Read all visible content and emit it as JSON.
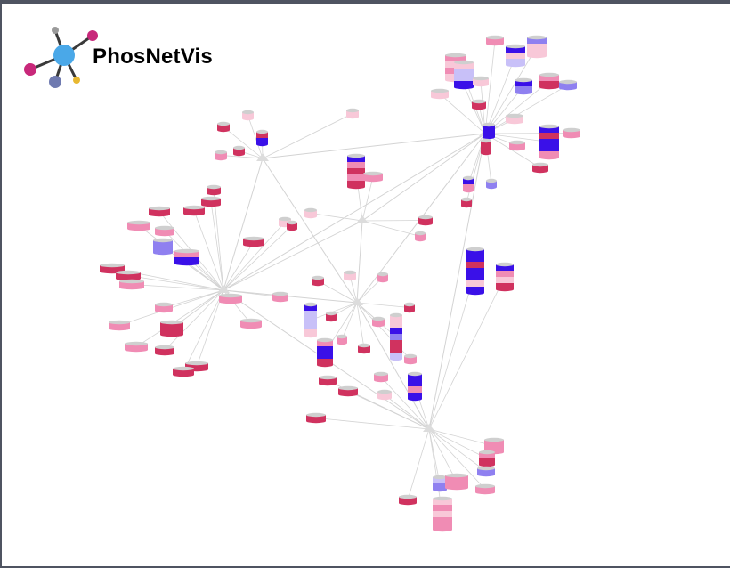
{
  "app": {
    "title": "PhosNetVis",
    "logo_icon": "network-molecule-icon"
  },
  "colors": {
    "background": "#ffffff",
    "frame": "#4f5461",
    "edge": "#d3d3d3",
    "hub": "#dcdcdc",
    "cap": "#cfcfcf",
    "dark_pink": "#d0325f",
    "pink": "#f08cb4",
    "light_pink": "#f8c8d8",
    "blue": "#3a10e8",
    "light_blue": "#8f80f0",
    "pale_blue": "#c8c0f8",
    "logo_hub": "#4aa8e8",
    "logo_magenta": "#c8287a",
    "logo_navy": "#6f7ab0",
    "logo_gold": "#e8b830",
    "logo_gray": "#9a9a9a"
  }
}
